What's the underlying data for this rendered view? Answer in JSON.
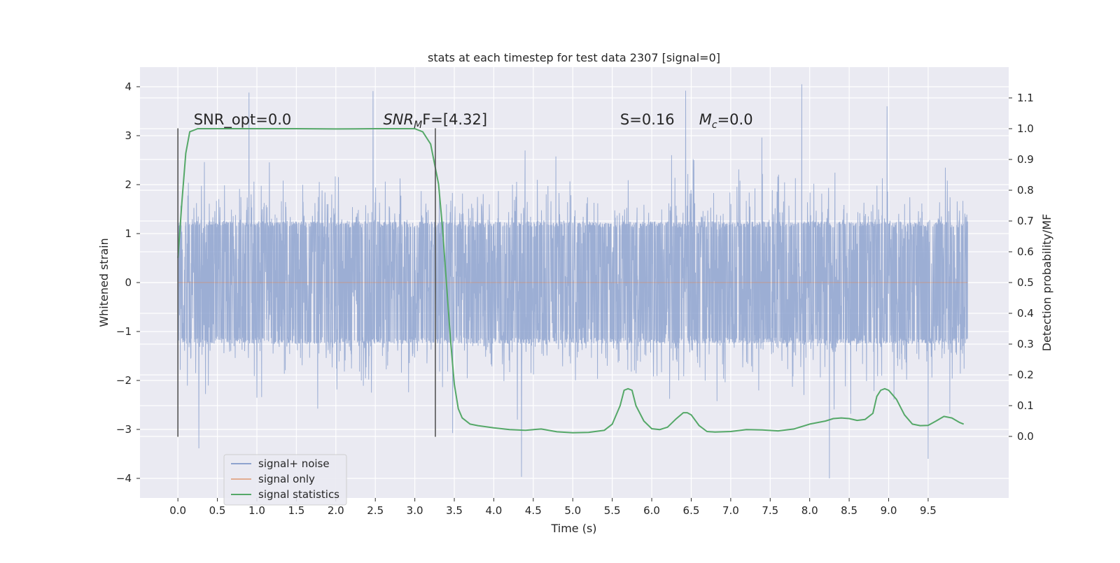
{
  "chart_data": {
    "type": "line",
    "title": "stats at each timestep for test data 2307 [signal=0]",
    "xlabel": "Time (s)",
    "ylabel": "Whitened strain",
    "ylabel_right": "Detection probability/MF",
    "xlim": [
      -0.48,
      10.52
    ],
    "ylim": [
      -4.4,
      4.4
    ],
    "ylim_right": [
      -0.2,
      1.2
    ],
    "x_ticks": [
      0.0,
      0.5,
      1.0,
      1.5,
      2.0,
      2.5,
      3.0,
      3.5,
      4.0,
      4.5,
      5.0,
      5.5,
      6.0,
      6.5,
      7.0,
      7.5,
      8.0,
      8.5,
      9.0,
      9.5
    ],
    "x_tick_labels": [
      "0.0",
      "0.5",
      "1.0",
      "1.5",
      "2.0",
      "2.5",
      "3.0",
      "3.5",
      "4.0",
      "4.5",
      "5.0",
      "5.5",
      "6.0",
      "6.5",
      "7.0",
      "7.5",
      "8.0",
      "8.5",
      "9.0",
      "9.5"
    ],
    "y_ticks": [
      -4,
      -3,
      -2,
      -1,
      0,
      1,
      2,
      3,
      4
    ],
    "y_tick_labels": [
      "−4",
      "−3",
      "−2",
      "−1",
      "0",
      "1",
      "2",
      "3",
      "4"
    ],
    "y_right_ticks": [
      0.0,
      0.1,
      0.2,
      0.3,
      0.4,
      0.5,
      0.6,
      0.7,
      0.8,
      0.9,
      1.0,
      1.1
    ],
    "y_right_tick_labels": [
      "0.0",
      "0.1",
      "0.2",
      "0.3",
      "0.4",
      "0.5",
      "0.6",
      "0.7",
      "0.8",
      "0.9",
      "1.0",
      "1.1"
    ],
    "grid": true,
    "legend_position": "lower-left",
    "annotations": [
      {
        "text": "SNR_opt=0.0",
        "x": 0.2
      },
      {
        "text": "SNR",
        "sub": "M",
        "suffix": "F=[4.32]",
        "x": 2.6
      },
      {
        "text": "S",
        "suffix": "=0.16",
        "x": 5.6
      },
      {
        "text": "M",
        "sub": "c",
        "suffix": "=0.0",
        "x": 6.6
      }
    ],
    "annotation_y": 3.2,
    "window_markers": {
      "x": [
        0.0,
        3.26
      ],
      "y_range": [
        -3.15,
        3.15
      ],
      "color": "#555555"
    },
    "series": [
      {
        "name": "signal+ noise",
        "axis": "left",
        "color": "#8ea3cf",
        "x_range": [
          0.0,
          10.0
        ],
        "core_amplitude": 1.25,
        "max_abs": 4.05,
        "peaks": [
          [
            0.9,
            3.88
          ],
          [
            2.47,
            3.91
          ],
          [
            4.35,
            -3.97
          ],
          [
            6.43,
            3.92
          ],
          [
            7.9,
            4.05
          ],
          [
            8.25,
            -4.0
          ],
          [
            8.98,
            3.6
          ],
          [
            9.5,
            -3.6
          ]
        ]
      },
      {
        "name": "signal only",
        "axis": "left",
        "color": "#dd8452",
        "x": [
          0.0,
          10.0
        ],
        "y": [
          0.0,
          0.0
        ]
      },
      {
        "name": "signal statistics",
        "axis": "right",
        "color": "#55a868",
        "x": [
          0.0,
          0.05,
          0.1,
          0.15,
          0.25,
          0.5,
          1.0,
          1.5,
          2.0,
          2.5,
          3.0,
          3.1,
          3.2,
          3.3,
          3.35,
          3.4,
          3.45,
          3.5,
          3.55,
          3.6,
          3.7,
          3.8,
          4.0,
          4.2,
          4.4,
          4.6,
          4.8,
          5.0,
          5.2,
          5.4,
          5.5,
          5.6,
          5.65,
          5.7,
          5.75,
          5.8,
          5.9,
          6.0,
          6.1,
          6.2,
          6.3,
          6.4,
          6.45,
          6.5,
          6.6,
          6.7,
          6.8,
          7.0,
          7.2,
          7.4,
          7.6,
          7.8,
          8.0,
          8.2,
          8.3,
          8.4,
          8.5,
          8.6,
          8.7,
          8.8,
          8.85,
          8.9,
          8.95,
          9.0,
          9.1,
          9.2,
          9.3,
          9.4,
          9.5,
          9.6,
          9.7,
          9.8,
          9.9,
          9.95
        ],
        "y": [
          0.58,
          0.76,
          0.92,
          0.99,
          1.0,
          1.0,
          1.0,
          1.0,
          0.999,
          1.0,
          1.0,
          0.99,
          0.95,
          0.82,
          0.68,
          0.5,
          0.32,
          0.17,
          0.09,
          0.06,
          0.04,
          0.035,
          0.028,
          0.022,
          0.02,
          0.024,
          0.015,
          0.012,
          0.013,
          0.02,
          0.04,
          0.1,
          0.15,
          0.155,
          0.15,
          0.1,
          0.05,
          0.025,
          0.022,
          0.03,
          0.055,
          0.077,
          0.077,
          0.07,
          0.035,
          0.016,
          0.014,
          0.016,
          0.022,
          0.021,
          0.018,
          0.024,
          0.04,
          0.05,
          0.058,
          0.06,
          0.058,
          0.052,
          0.055,
          0.075,
          0.13,
          0.15,
          0.155,
          0.15,
          0.12,
          0.07,
          0.04,
          0.035,
          0.036,
          0.05,
          0.065,
          0.06,
          0.045,
          0.04
        ]
      }
    ]
  }
}
